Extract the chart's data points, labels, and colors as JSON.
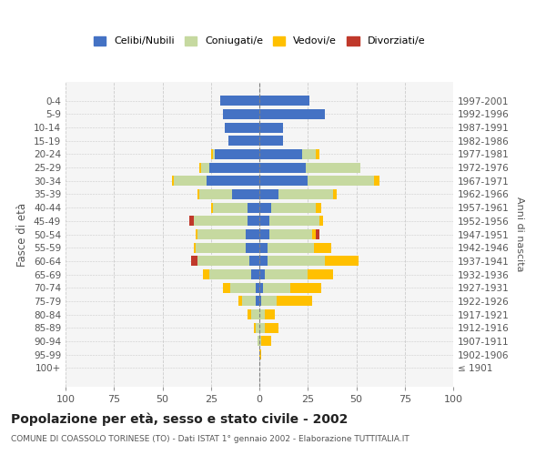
{
  "age_groups": [
    "100+",
    "95-99",
    "90-94",
    "85-89",
    "80-84",
    "75-79",
    "70-74",
    "65-69",
    "60-64",
    "55-59",
    "50-54",
    "45-49",
    "40-44",
    "35-39",
    "30-34",
    "25-29",
    "20-24",
    "15-19",
    "10-14",
    "5-9",
    "0-4"
  ],
  "birth_years": [
    "≤ 1901",
    "1902-1906",
    "1907-1911",
    "1912-1916",
    "1917-1921",
    "1922-1926",
    "1927-1931",
    "1932-1936",
    "1937-1941",
    "1942-1946",
    "1947-1951",
    "1952-1956",
    "1957-1961",
    "1962-1966",
    "1967-1971",
    "1972-1976",
    "1977-1981",
    "1982-1986",
    "1987-1991",
    "1992-1996",
    "1997-2001"
  ],
  "male": {
    "celibi": [
      0,
      0,
      0,
      0,
      0,
      2,
      2,
      4,
      5,
      7,
      7,
      6,
      6,
      14,
      27,
      26,
      23,
      16,
      18,
      19,
      20
    ],
    "coniugati": [
      0,
      0,
      1,
      2,
      4,
      7,
      13,
      22,
      27,
      26,
      25,
      28,
      18,
      17,
      17,
      4,
      1,
      0,
      0,
      0,
      0
    ],
    "vedovi": [
      0,
      0,
      0,
      1,
      2,
      2,
      4,
      3,
      0,
      1,
      1,
      0,
      1,
      1,
      1,
      1,
      1,
      0,
      0,
      0,
      0
    ],
    "divorziati": [
      0,
      0,
      0,
      0,
      0,
      0,
      0,
      0,
      3,
      0,
      0,
      2,
      0,
      0,
      0,
      0,
      0,
      0,
      0,
      0,
      0
    ]
  },
  "female": {
    "nubili": [
      0,
      0,
      0,
      0,
      0,
      1,
      2,
      3,
      4,
      4,
      5,
      5,
      6,
      10,
      25,
      24,
      22,
      12,
      12,
      34,
      26
    ],
    "coniugate": [
      0,
      0,
      1,
      3,
      3,
      8,
      14,
      22,
      30,
      24,
      22,
      26,
      23,
      28,
      34,
      28,
      7,
      0,
      0,
      0,
      0
    ],
    "vedove": [
      0,
      1,
      5,
      7,
      5,
      18,
      16,
      13,
      17,
      9,
      2,
      2,
      3,
      2,
      3,
      0,
      2,
      0,
      0,
      0,
      0
    ],
    "divorziate": [
      0,
      0,
      0,
      0,
      0,
      0,
      0,
      0,
      0,
      0,
      2,
      0,
      0,
      0,
      0,
      0,
      0,
      0,
      0,
      0,
      0
    ]
  },
  "color_celibi": "#4472c4",
  "color_coniugati": "#c6d9a0",
  "color_vedovi": "#ffc000",
  "color_divorziati": "#c0392b",
  "xlim": 100,
  "title": "Popolazione per età, sesso e stato civile - 2002",
  "subtitle": "COMUNE DI COASSOLO TORINESE (TO) - Dati ISTAT 1° gennaio 2002 - Elaborazione TUTTITALIA.IT",
  "ylabel_left": "Fasce di età",
  "ylabel_right": "Anni di nascita",
  "bg_color": "#f5f5f5",
  "grid_color": "#cccccc"
}
